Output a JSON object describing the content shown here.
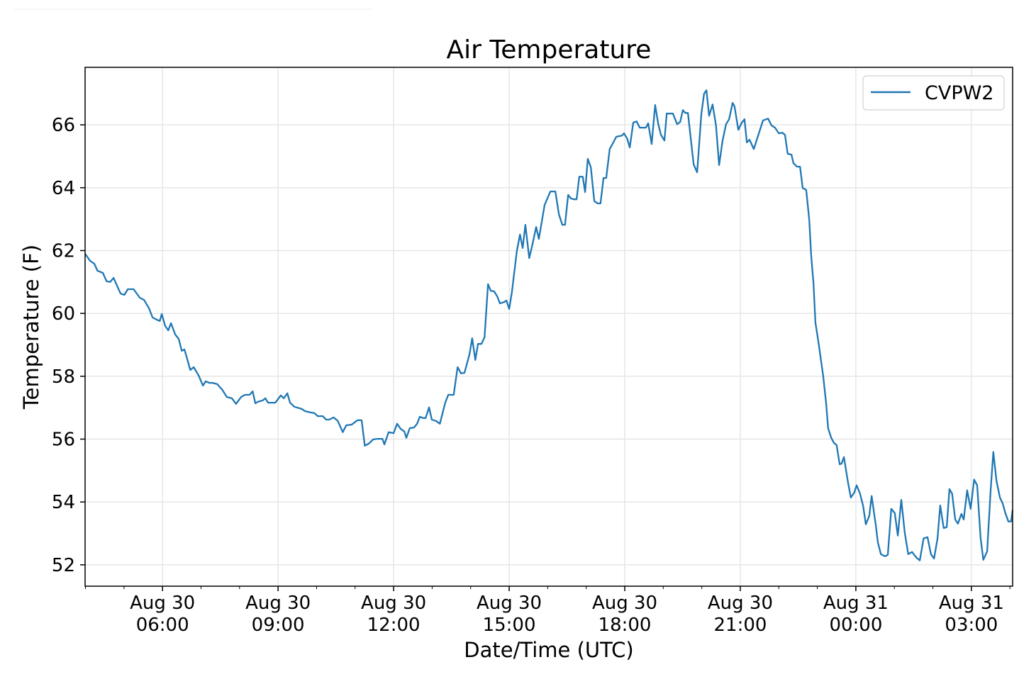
{
  "chart_data": {
    "type": "line",
    "title": "Air Temperature",
    "xlabel": "Date/Time (UTC)",
    "ylabel": "Temperature (F)",
    "x_units": "hours since Aug 30 00:00 UTC",
    "xlim": [
      3.99,
      28.07
    ],
    "ylim": [
      51.32,
      67.83
    ],
    "grid": true,
    "legend_position": "top-right",
    "colors": {
      "series": "#1f77b4",
      "grid": "#e6e6e6",
      "axis": "#000000",
      "legend_border": "#cccccc"
    },
    "y_ticks": [
      52,
      54,
      56,
      58,
      60,
      62,
      64,
      66
    ],
    "y_tick_labels": [
      "52",
      "54",
      "56",
      "58",
      "60",
      "62",
      "64",
      "66"
    ],
    "x_ticks": [
      6,
      9,
      12,
      15,
      18,
      21,
      24,
      27
    ],
    "x_tick_labels": [
      [
        "Aug 30",
        "06:00"
      ],
      [
        "Aug 30",
        "09:00"
      ],
      [
        "Aug 30",
        "12:00"
      ],
      [
        "Aug 30",
        "15:00"
      ],
      [
        "Aug 30",
        "18:00"
      ],
      [
        "Aug 30",
        "21:00"
      ],
      [
        "Aug 31",
        "00:00"
      ],
      [
        "Aug 31",
        "03:00"
      ]
    ],
    "series": [
      {
        "name": "CVPW2",
        "x": [
          3.99,
          4.12,
          4.23,
          4.31,
          4.45,
          4.55,
          4.64,
          4.73,
          4.82,
          4.91,
          5.01,
          5.1,
          5.25,
          5.41,
          5.52,
          5.65,
          5.74,
          5.85,
          5.93,
          5.98,
          6.07,
          6.15,
          6.22,
          6.33,
          6.42,
          6.5,
          6.57,
          6.66,
          6.72,
          6.81,
          6.94,
          7.05,
          7.12,
          7.21,
          7.29,
          7.42,
          7.55,
          7.67,
          7.8,
          7.91,
          8.04,
          8.14,
          8.26,
          8.34,
          8.41,
          8.48,
          8.6,
          8.67,
          8.74,
          8.93,
          9.07,
          9.15,
          9.24,
          9.31,
          9.42,
          9.61,
          9.7,
          9.83,
          9.94,
          10.03,
          10.16,
          10.25,
          10.33,
          10.44,
          10.55,
          10.68,
          10.77,
          10.91,
          11.06,
          11.17,
          11.25,
          11.36,
          11.47,
          11.58,
          11.71,
          11.76,
          11.87,
          12.0,
          12.09,
          12.18,
          12.28,
          12.33,
          12.42,
          12.53,
          12.61,
          12.68,
          12.77,
          12.83,
          12.92,
          12.99,
          13.1,
          13.2,
          13.34,
          13.42,
          13.56,
          13.66,
          13.75,
          13.84,
          13.97,
          14.04,
          14.12,
          14.19,
          14.28,
          14.36,
          14.45,
          14.52,
          14.61,
          14.69,
          14.76,
          14.87,
          14.93,
          15.0,
          15.07,
          15.2,
          15.28,
          15.35,
          15.42,
          15.52,
          15.59,
          15.7,
          15.77,
          15.92,
          16.07,
          16.2,
          16.29,
          16.38,
          16.45,
          16.53,
          16.6,
          16.68,
          16.75,
          16.82,
          16.91,
          16.97,
          17.04,
          17.12,
          17.21,
          17.3,
          17.37,
          17.45,
          17.52,
          17.61,
          17.69,
          17.78,
          17.85,
          17.93,
          17.98,
          18.06,
          18.13,
          18.22,
          18.31,
          18.39,
          18.55,
          18.61,
          18.7,
          18.79,
          18.87,
          18.94,
          19.03,
          19.09,
          19.16,
          19.25,
          19.36,
          19.44,
          19.51,
          19.57,
          19.64,
          19.79,
          19.88,
          19.99,
          20.06,
          20.12,
          20.19,
          20.28,
          20.37,
          20.45,
          20.54,
          20.63,
          20.71,
          20.8,
          20.85,
          20.95,
          21.04,
          21.11,
          21.17,
          21.24,
          21.35,
          21.44,
          21.59,
          21.72,
          21.81,
          21.9,
          22.0,
          22.09,
          22.16,
          22.23,
          22.33,
          22.38,
          22.47,
          22.55,
          22.62,
          22.71,
          22.79,
          22.84,
          22.9,
          22.95,
          23.03,
          23.1,
          23.15,
          23.23,
          23.28,
          23.36,
          23.43,
          23.5,
          23.58,
          23.63,
          23.69,
          23.8,
          23.87,
          23.96,
          24.02,
          24.11,
          24.19,
          24.26,
          24.35,
          24.41,
          24.52,
          24.57,
          24.65,
          24.76,
          24.83,
          24.92,
          25.01,
          25.09,
          25.18,
          25.27,
          25.36,
          25.46,
          25.57,
          25.66,
          25.76,
          25.86,
          25.95,
          26.03,
          26.12,
          26.19,
          26.28,
          26.36,
          26.43,
          26.5,
          26.58,
          26.65,
          26.74,
          26.8,
          26.89,
          26.98,
          27.07,
          27.15,
          27.24,
          27.31,
          27.41,
          27.5,
          27.57,
          27.65,
          27.74,
          27.81,
          27.88,
          27.96,
          28.03,
          28.07
        ],
        "y": [
          61.9,
          61.67,
          61.58,
          61.36,
          61.29,
          61.02,
          61.0,
          61.13,
          60.88,
          60.63,
          60.59,
          60.77,
          60.77,
          60.5,
          60.43,
          60.16,
          59.87,
          59.8,
          59.76,
          59.98,
          59.6,
          59.46,
          59.69,
          59.33,
          59.19,
          58.81,
          58.85,
          58.47,
          58.2,
          58.29,
          58.02,
          57.7,
          57.84,
          57.79,
          57.79,
          57.75,
          57.57,
          57.34,
          57.3,
          57.12,
          57.34,
          57.41,
          57.41,
          57.52,
          57.14,
          57.19,
          57.23,
          57.3,
          57.16,
          57.16,
          57.39,
          57.3,
          57.46,
          57.16,
          57.03,
          56.96,
          56.89,
          56.85,
          56.83,
          56.73,
          56.73,
          56.62,
          56.62,
          56.69,
          56.58,
          56.22,
          56.44,
          56.46,
          56.6,
          56.6,
          55.79,
          55.86,
          55.99,
          56.01,
          56.01,
          55.83,
          56.22,
          56.19,
          56.49,
          56.33,
          56.24,
          56.04,
          56.35,
          56.37,
          56.49,
          56.71,
          56.67,
          56.67,
          57.01,
          56.62,
          56.58,
          56.49,
          57.16,
          57.41,
          57.41,
          58.29,
          58.09,
          58.11,
          58.7,
          59.21,
          58.52,
          59.03,
          59.03,
          59.24,
          60.93,
          60.72,
          60.7,
          60.54,
          60.32,
          60.36,
          60.41,
          60.14,
          60.68,
          61.99,
          62.51,
          62.08,
          62.82,
          61.76,
          62.12,
          62.75,
          62.37,
          63.45,
          63.88,
          63.88,
          63.16,
          62.82,
          62.82,
          63.77,
          63.66,
          63.63,
          63.63,
          64.35,
          64.35,
          63.86,
          64.92,
          64.65,
          63.57,
          63.5,
          63.5,
          64.31,
          64.31,
          65.23,
          65.41,
          65.62,
          65.64,
          65.66,
          65.73,
          65.57,
          65.28,
          66.07,
          66.11,
          65.91,
          65.91,
          66.05,
          65.39,
          66.63,
          66.02,
          65.68,
          65.5,
          66.36,
          66.36,
          66.36,
          66.02,
          66.09,
          66.47,
          66.38,
          66.38,
          64.74,
          64.49,
          66.36,
          66.99,
          67.1,
          66.29,
          66.65,
          65.98,
          64.72,
          65.5,
          66.02,
          66.18,
          66.7,
          66.59,
          65.84,
          66.07,
          66.18,
          65.44,
          65.53,
          65.23,
          65.57,
          66.14,
          66.2,
          65.98,
          65.91,
          65.73,
          65.75,
          65.68,
          65.08,
          65.05,
          64.78,
          64.67,
          64.67,
          63.99,
          63.93,
          62.98,
          61.85,
          60.95,
          59.71,
          59.08,
          58.47,
          58.02,
          57.12,
          56.35,
          56.04,
          55.88,
          55.81,
          55.2,
          55.22,
          55.43,
          54.59,
          54.14,
          54.3,
          54.53,
          54.26,
          53.87,
          53.29,
          53.56,
          54.19,
          53.24,
          52.72,
          52.34,
          52.27,
          52.32,
          53.78,
          53.65,
          52.93,
          54.07,
          53.02,
          52.34,
          52.41,
          52.23,
          52.14,
          52.84,
          52.88,
          52.34,
          52.2,
          52.84,
          53.89,
          53.17,
          53.2,
          54.41,
          54.26,
          53.44,
          53.31,
          53.62,
          53.44,
          54.37,
          53.78,
          54.71,
          54.53,
          52.84,
          52.16,
          52.43,
          54.37,
          55.59,
          54.68,
          54.14,
          53.96,
          53.65,
          53.38,
          53.38,
          53.74
        ]
      }
    ]
  }
}
